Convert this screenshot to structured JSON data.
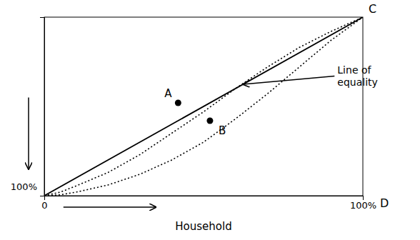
{
  "chart_data": {
    "type": "line",
    "xlabel": "Household",
    "xlim": [
      0,
      1
    ],
    "ylim": [
      0,
      1
    ],
    "xticks": [
      0,
      {
        "value": 1,
        "label": "100%"
      }
    ],
    "grid": false,
    "series": [
      {
        "color": "black",
        "line_style": "solid",
        "x": [
          0,
          1
        ],
        "values": [
          0,
          1
        ]
      },
      {
        "color": "black",
        "line_style": "dotted",
        "x": [
          0.0,
          0.05,
          0.1,
          0.2,
          0.3,
          0.4,
          0.5,
          0.6,
          0.7,
          0.8,
          0.9,
          1.0
        ],
        "values": [
          0.0,
          0.02,
          0.055,
          0.13,
          0.23,
          0.35,
          0.47,
          0.6,
          0.72,
          0.83,
          0.92,
          1.0
        ]
      },
      {
        "color": "black",
        "line_style": "dotted",
        "x": [
          0.0,
          0.05,
          0.1,
          0.2,
          0.3,
          0.4,
          0.5,
          0.6,
          0.7,
          0.8,
          0.9,
          1.0
        ],
        "values": [
          0.0,
          0.005,
          0.02,
          0.06,
          0.12,
          0.2,
          0.3,
          0.43,
          0.57,
          0.72,
          0.87,
          1.0
        ]
      },
      {
        "type": "scatter",
        "marker": "circle",
        "color": "black",
        "x": [
          0.42,
          0.52
        ],
        "values": [
          0.52,
          0.42
        ],
        "labels": [
          "A",
          "B"
        ]
      }
    ],
    "annotations": [
      {
        "text": "Line of\nequality",
        "x": 0.62,
        "y": 0.62
      },
      {
        "text": "C",
        "x": 1,
        "y": 1
      },
      {
        "text": "D",
        "x": 1,
        "y": 0
      },
      {
        "text": "100%",
        "x": 0,
        "y": 0
      }
    ]
  }
}
